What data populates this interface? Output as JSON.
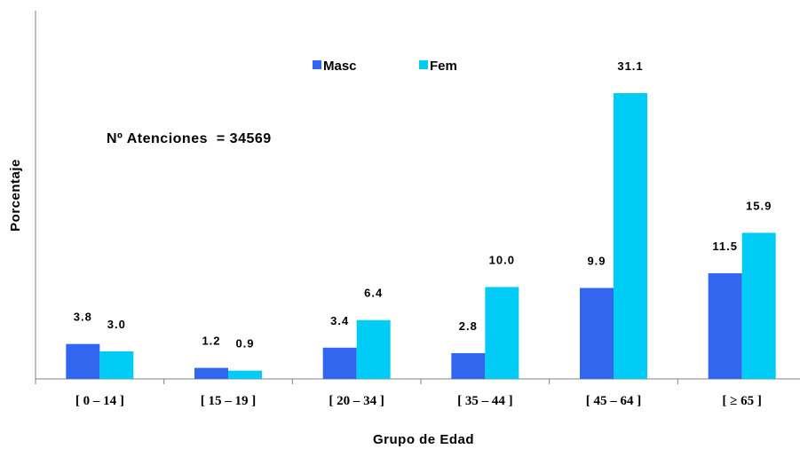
{
  "chart_data": {
    "type": "bar",
    "title": "",
    "xlabel": "Grupo de Edad",
    "ylabel": "Porcentaje",
    "categories": [
      "[ 0 – 14 ]",
      "[ 15 – 19 ]",
      "[ 20 – 34 ]",
      "[ 35 – 44 ]",
      "[ 45 – 64 ]",
      "[ ≥ 65 ]"
    ],
    "series": [
      {
        "name": "Masc",
        "color": "#3366ee",
        "values": [
          3.8,
          1.2,
          3.4,
          2.8,
          9.9,
          11.5
        ],
        "labels": [
          "3.8",
          "1.2",
          "3.4",
          "2.8",
          "9.9",
          "11.5"
        ]
      },
      {
        "name": "Fem",
        "color": "#00ccf5",
        "values": [
          3.0,
          0.9,
          6.4,
          10.0,
          31.1,
          15.9
        ],
        "labels": [
          "3.0",
          "0.9",
          "6.4",
          "10.0",
          "31.1",
          "15.9"
        ]
      }
    ],
    "annotation": "Nº Atenciones  = 34569",
    "ylim": [
      0,
      39
    ],
    "grid": false,
    "legend": "top-center"
  }
}
